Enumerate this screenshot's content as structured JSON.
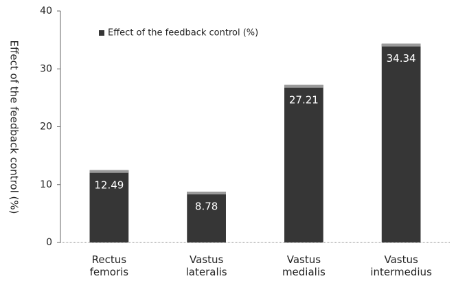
{
  "chart_data": {
    "type": "bar",
    "y_label": "Effect of the feedback control (%)",
    "categories": [
      "Rectus femoris",
      "Vastus lateralis",
      "Vastus medialis",
      "Vastus intermedius"
    ],
    "series": [
      {
        "name": "Effect of the feedback control (%)",
        "color": "#363636",
        "values": [
          12.49,
          8.78,
          27.21,
          34.34
        ]
      }
    ],
    "ylim": [
      0,
      40
    ],
    "yticks": [
      0,
      10,
      20,
      30,
      40
    ],
    "grid": false,
    "legend": "top-left"
  }
}
